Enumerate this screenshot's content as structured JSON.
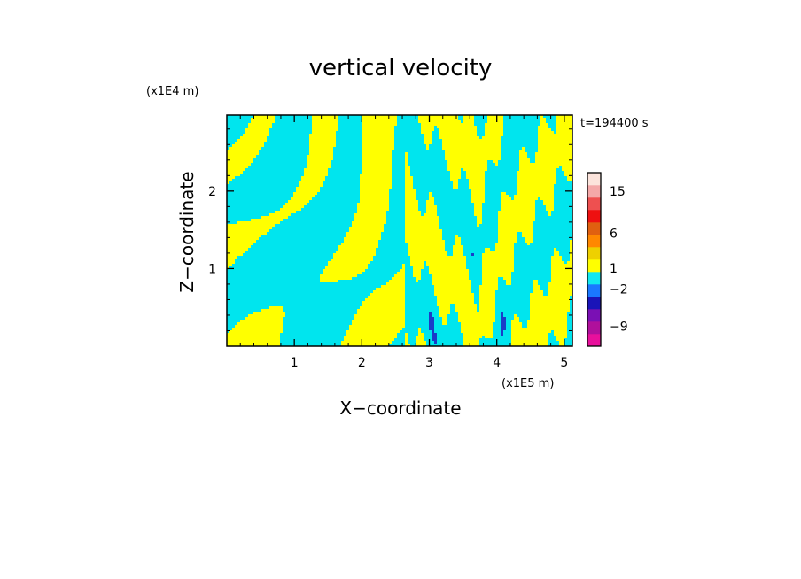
{
  "chart_data": {
    "type": "heatmap",
    "title": "vertical velocity",
    "xlabel": "X−coordinate",
    "ylabel": "Z−coordinate",
    "x_scale_label": "(x1E5 m)",
    "y_scale_label": "(x1E4 m)",
    "time_label": "t=194400 s",
    "x_ticks": [
      "1",
      "2",
      "3",
      "4",
      "5"
    ],
    "x_tick_values": [
      1,
      2,
      3,
      4,
      5
    ],
    "y_ticks": [
      "1",
      "2"
    ],
    "y_tick_values": [
      1,
      2
    ],
    "xlim": [
      0,
      5.12
    ],
    "ylim": [
      0,
      2.98
    ],
    "colorbar": {
      "tick_labels": [
        "15",
        "6",
        "1",
        "−2",
        "−9"
      ],
      "tick_values": [
        15,
        6,
        1,
        -2,
        -9
      ],
      "colors": [
        "#e8109c",
        "#b0109c",
        "#7a10b4",
        "#1a14b8",
        "#1a78ff",
        "#12e8f0",
        "#ffff00",
        "#eed000",
        "#ff8800",
        "#e06010",
        "#ee1010",
        "#ee5050",
        "#f4a8a8",
        "#fce4dc"
      ]
    },
    "field_colors": {
      "positive": "#ffff00",
      "negative": "#00e5ee",
      "strong_negative": "#1a3cc8"
    }
  }
}
